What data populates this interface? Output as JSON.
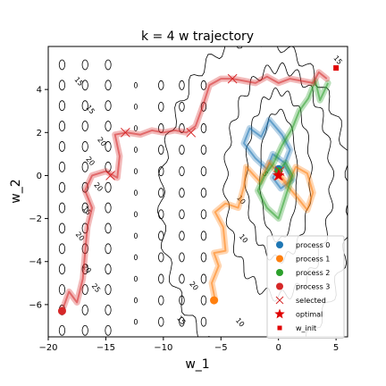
{
  "chart_data": {
    "type": "line",
    "title": "k = 4 w trajectory",
    "xlabel": "w_1",
    "ylabel": "w_2",
    "xlim": [
      -20,
      6
    ],
    "ylim": [
      -7.5,
      6
    ],
    "xticks": [
      -20,
      -15,
      -10,
      -5,
      0,
      5
    ],
    "yticks": [
      -6,
      -4,
      -2,
      0,
      2,
      4
    ],
    "grid": false,
    "legend_position": "lower-right",
    "contour_labels": [
      {
        "text": "15",
        "x": -17.5,
        "y": 4.3
      },
      {
        "text": "15",
        "x": -16.5,
        "y": 3.0
      },
      {
        "text": "20",
        "x": -15.5,
        "y": 1.5
      },
      {
        "text": "20",
        "x": -16.5,
        "y": 0.6
      },
      {
        "text": "20",
        "x": -15.8,
        "y": -0.6
      },
      {
        "text": "15",
        "x": -16.8,
        "y": -1.7
      },
      {
        "text": "20",
        "x": -17.4,
        "y": -2.9
      },
      {
        "text": "20",
        "x": -16.8,
        "y": -4.4
      },
      {
        "text": "25",
        "x": -16.0,
        "y": -5.3
      },
      {
        "text": "20",
        "x": -7.5,
        "y": -5.2
      },
      {
        "text": "15",
        "x": -8.6,
        "y": -6.8
      },
      {
        "text": "10",
        "x": -3.2,
        "y": -3.0
      },
      {
        "text": "10",
        "x": -3.5,
        "y": -6.9
      },
      {
        "text": "10",
        "x": -3.4,
        "y": -1.2
      },
      {
        "text": "5",
        "x": -1.3,
        "y": 0.0
      },
      {
        "text": "15",
        "x": 5.0,
        "y": 5.3
      }
    ],
    "series": [
      {
        "name": "process 0",
        "color": "#1f77b4",
        "points": [
          [
            0.5,
            0.6
          ],
          [
            -0.5,
            1.0
          ],
          [
            -1.0,
            0.3
          ],
          [
            -2.0,
            0.8
          ],
          [
            -3.0,
            1.5
          ],
          [
            -2.5,
            2.2
          ],
          [
            -1.5,
            1.8
          ],
          [
            -0.8,
            2.6
          ],
          [
            0.3,
            1.9
          ],
          [
            1.0,
            1.2
          ],
          [
            0.5,
            0.5
          ],
          [
            1.2,
            -0.2
          ],
          [
            0.2,
            -0.6
          ],
          [
            -0.5,
            -0.1
          ],
          [
            0.0,
            0.3
          ]
        ],
        "final": [
          0.0,
          0.3
        ]
      },
      {
        "name": "process 1",
        "color": "#ff7f0e",
        "points": [
          [
            -5.5,
            -5.8
          ],
          [
            -5.8,
            -5.0
          ],
          [
            -5.2,
            -4.2
          ],
          [
            -5.6,
            -3.6
          ],
          [
            -4.6,
            -3.5
          ],
          [
            -4.8,
            -2.4
          ],
          [
            -5.5,
            -1.7
          ],
          [
            -4.6,
            -1.3
          ],
          [
            -3.5,
            -1.5
          ],
          [
            -3.0,
            -0.5
          ],
          [
            -2.8,
            0.4
          ],
          [
            -1.6,
            -0.3
          ],
          [
            -0.8,
            0.6
          ],
          [
            0.0,
            0.1
          ],
          [
            0.8,
            -0.4
          ],
          [
            1.5,
            0.4
          ],
          [
            2.5,
            0.1
          ],
          [
            3.0,
            -0.8
          ],
          [
            2.5,
            -1.6
          ],
          [
            1.6,
            -1.0
          ],
          [
            0.5,
            -0.3
          ],
          [
            0.0,
            0.0
          ]
        ],
        "final": [
          -5.6,
          -5.8
        ]
      },
      {
        "name": "process 2",
        "color": "#2ca02c",
        "points": [
          [
            4.3,
            4.3
          ],
          [
            3.6,
            3.5
          ],
          [
            3.2,
            4.4
          ],
          [
            2.6,
            3.6
          ],
          [
            1.8,
            3.0
          ],
          [
            1.2,
            2.2
          ],
          [
            0.3,
            1.4
          ],
          [
            -0.5,
            0.5
          ],
          [
            -1.2,
            0.0
          ],
          [
            -1.8,
            -0.7
          ],
          [
            -1.0,
            -1.5
          ],
          [
            0.0,
            -2.0
          ],
          [
            0.6,
            -1.0
          ],
          [
            1.2,
            0.0
          ],
          [
            0.6,
            0.6
          ],
          [
            0.0,
            0.2
          ]
        ],
        "final": [
          0.0,
          0.2
        ]
      },
      {
        "name": "process 3",
        "color": "#d62728",
        "points": [
          [
            -18.8,
            -6.3
          ],
          [
            -18.2,
            -5.4
          ],
          [
            -17.5,
            -5.9
          ],
          [
            -17.0,
            -4.8
          ],
          [
            -16.8,
            -3.6
          ],
          [
            -16.6,
            -2.4
          ],
          [
            -16.2,
            -1.5
          ],
          [
            -16.8,
            -0.7
          ],
          [
            -16.2,
            0.0
          ],
          [
            -15.0,
            0.2
          ],
          [
            -14.0,
            -0.1
          ],
          [
            -13.8,
            0.9
          ],
          [
            -14.2,
            1.9
          ],
          [
            -13.2,
            2.0
          ],
          [
            -12.0,
            1.9
          ],
          [
            -11.0,
            2.1
          ],
          [
            -10.0,
            2.0
          ],
          [
            -9.0,
            2.1
          ],
          [
            -8.0,
            2.0
          ],
          [
            -7.2,
            2.3
          ],
          [
            -6.6,
            3.2
          ],
          [
            -6.0,
            4.2
          ],
          [
            -5.0,
            4.5
          ],
          [
            -4.0,
            4.5
          ],
          [
            -3.0,
            4.4
          ],
          [
            -2.0,
            4.3
          ],
          [
            -1.0,
            4.6
          ],
          [
            0.0,
            4.3
          ],
          [
            1.0,
            4.5
          ],
          [
            2.0,
            4.4
          ],
          [
            3.0,
            4.3
          ],
          [
            3.5,
            4.8
          ],
          [
            4.2,
            4.5
          ]
        ],
        "final": [
          -18.8,
          -6.3
        ]
      }
    ],
    "selected_points": [
      [
        -13.3,
        2.0
      ],
      [
        -7.6,
        2.0
      ],
      [
        -4.0,
        4.5
      ],
      [
        -14.6,
        0.0
      ],
      [
        0.0,
        0.0
      ],
      [
        0.1,
        0.2
      ]
    ],
    "optimal": [
      0.0,
      0.0
    ],
    "w_init": [
      5.0,
      5.0
    ],
    "legend": {
      "entries": [
        "process 0",
        "process 1",
        "process 2",
        "process 3",
        "selected",
        "optimal",
        "w_init"
      ]
    }
  }
}
